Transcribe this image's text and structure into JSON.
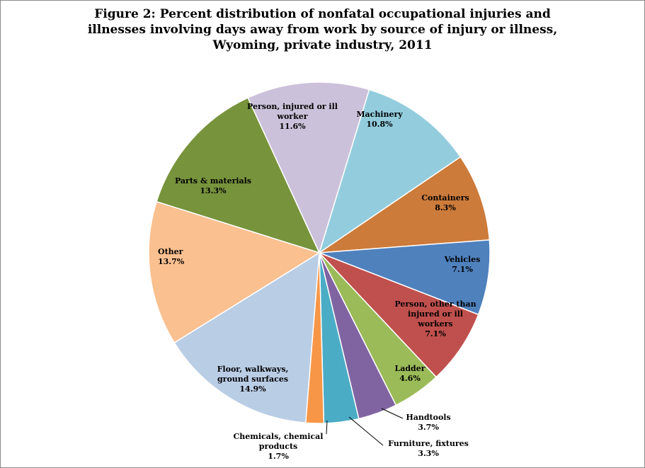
{
  "title_lines": [
    "Figure 2: Percent distribution of nonfatal occupational injuries and",
    "illnesses involving days away from work by source of injury or illness,",
    "Wyoming, private industry, 2011"
  ],
  "chart_data": {
    "type": "pie",
    "title": "Figure 2: Percent distribution of nonfatal occupational injuries and illnesses involving days away from work by source of injury or illness, Wyoming, private industry, 2011",
    "unit": "%",
    "slices": [
      {
        "label": "Machinery",
        "value": 10.8,
        "display": "10.8%",
        "color": "#93cddd"
      },
      {
        "label": "Containers",
        "value": 8.3,
        "display": "8.3%",
        "color": "#cd7b3a"
      },
      {
        "label": "Vehicles",
        "value": 7.1,
        "display": "7.1%",
        "color": "#4f81bd"
      },
      {
        "label": "Person, other than injured or ill workers",
        "value": 7.1,
        "display": "7.1%",
        "color": "#c0504d"
      },
      {
        "label": "Ladder",
        "value": 4.6,
        "display": "4.6%",
        "color": "#9bbb59"
      },
      {
        "label": "Handtools",
        "value": 3.7,
        "display": "3.7%",
        "color": "#8064a2"
      },
      {
        "label": "Furniture, fixtures",
        "value": 3.3,
        "display": "3.3%",
        "color": "#4bacc6"
      },
      {
        "label": "Chemicals, chemical products",
        "value": 1.7,
        "display": "1.7%",
        "color": "#f79646"
      },
      {
        "label": "Floor, walkways, ground surfaces",
        "value": 14.9,
        "display": "14.9%",
        "color": "#b9cde5"
      },
      {
        "label": "Other",
        "value": 13.7,
        "display": "13.7%",
        "color": "#fac090"
      },
      {
        "label": "Parts & materials",
        "value": 13.3,
        "display": "13.3%",
        "color": "#77933c"
      },
      {
        "label": "Person, injured or ill worker",
        "value": 11.6,
        "display": "11.6%",
        "color": "#ccc1da"
      }
    ]
  }
}
